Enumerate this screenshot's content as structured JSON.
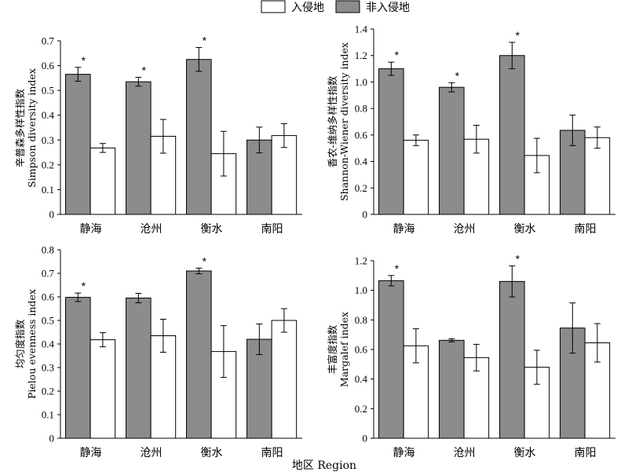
{
  "legend": {
    "invaded_label": "入侵地",
    "non_invaded_label": "非入侵地",
    "colors": {
      "invaded": "#ffffff",
      "non_invaded": "#8c8c8c"
    }
  },
  "xlabel": "地区 Region",
  "chart_data": [
    {
      "type": "bar",
      "ylabel_cn": "辛普森多样性指数",
      "ylabel_en": "Simpson diversity index",
      "ylim": [
        0,
        0.7
      ],
      "yticks": [
        "0",
        "0.1",
        "0.2",
        "0.3",
        "0.4",
        "0.5",
        "0.6",
        "0.7"
      ],
      "categories": [
        "静海",
        "沧州",
        "衡水",
        "南阳"
      ],
      "series": [
        {
          "name": "非入侵地",
          "values": [
            0.565,
            0.535,
            0.625,
            0.3
          ],
          "errors": [
            0.028,
            0.018,
            0.048,
            0.052
          ]
        },
        {
          "name": "入侵地",
          "values": [
            0.268,
            0.315,
            0.245,
            0.318
          ],
          "errors": [
            0.018,
            0.068,
            0.09,
            0.048
          ]
        }
      ],
      "significance": [
        "*",
        "*",
        "*",
        ""
      ]
    },
    {
      "type": "bar",
      "ylabel_cn": "香农-维纳多样性指数",
      "ylabel_en": "Shannon-Wiener diversity index",
      "ylim": [
        0,
        1.4
      ],
      "yticks": [
        "0",
        "0.2",
        "0.4",
        "0.6",
        "0.8",
        "1.0",
        "1.2",
        "1.4"
      ],
      "categories": [
        "静海",
        "沧州",
        "衡水",
        "南阳"
      ],
      "series": [
        {
          "name": "非入侵地",
          "values": [
            1.1,
            0.96,
            1.2,
            0.635
          ],
          "errors": [
            0.05,
            0.035,
            0.1,
            0.115
          ]
        },
        {
          "name": "入侵地",
          "values": [
            0.56,
            0.568,
            0.445,
            0.58
          ],
          "errors": [
            0.04,
            0.105,
            0.13,
            0.08
          ]
        }
      ],
      "significance": [
        "*",
        "*",
        "*",
        ""
      ]
    },
    {
      "type": "bar",
      "ylabel_cn": "均匀度指数",
      "ylabel_en": "Pielou evenness index",
      "ylim": [
        0,
        0.8
      ],
      "yticks": [
        "0",
        "0.1",
        "0.2",
        "0.3",
        "0.4",
        "0.5",
        "0.6",
        "0.7",
        "0.8"
      ],
      "categories": [
        "静海",
        "沧州",
        "衡水",
        "南阳"
      ],
      "series": [
        {
          "name": "非入侵地",
          "values": [
            0.598,
            0.595,
            0.71,
            0.42
          ],
          "errors": [
            0.018,
            0.02,
            0.012,
            0.065
          ]
        },
        {
          "name": "入侵地",
          "values": [
            0.418,
            0.435,
            0.368,
            0.5
          ],
          "errors": [
            0.03,
            0.07,
            0.11,
            0.05
          ]
        }
      ],
      "significance": [
        "*",
        "",
        "*",
        ""
      ]
    },
    {
      "type": "bar",
      "ylabel_cn": "丰富度指数",
      "ylabel_en": "Margalef index",
      "ylim": [
        0,
        1.2
      ],
      "yticks": [
        "0",
        "0.2",
        "0.4",
        "0.6",
        "0.8",
        "1.0",
        "1.2"
      ],
      "categories": [
        "静海",
        "沧州",
        "衡水",
        "南阳"
      ],
      "series": [
        {
          "name": "非入侵地",
          "values": [
            1.065,
            0.662,
            1.06,
            0.745
          ],
          "errors": [
            0.035,
            0.01,
            0.105,
            0.17
          ]
        },
        {
          "name": "入侵地",
          "values": [
            0.625,
            0.545,
            0.48,
            0.645
          ],
          "errors": [
            0.115,
            0.09,
            0.115,
            0.13
          ]
        }
      ],
      "significance": [
        "*",
        "",
        "*",
        ""
      ]
    }
  ]
}
